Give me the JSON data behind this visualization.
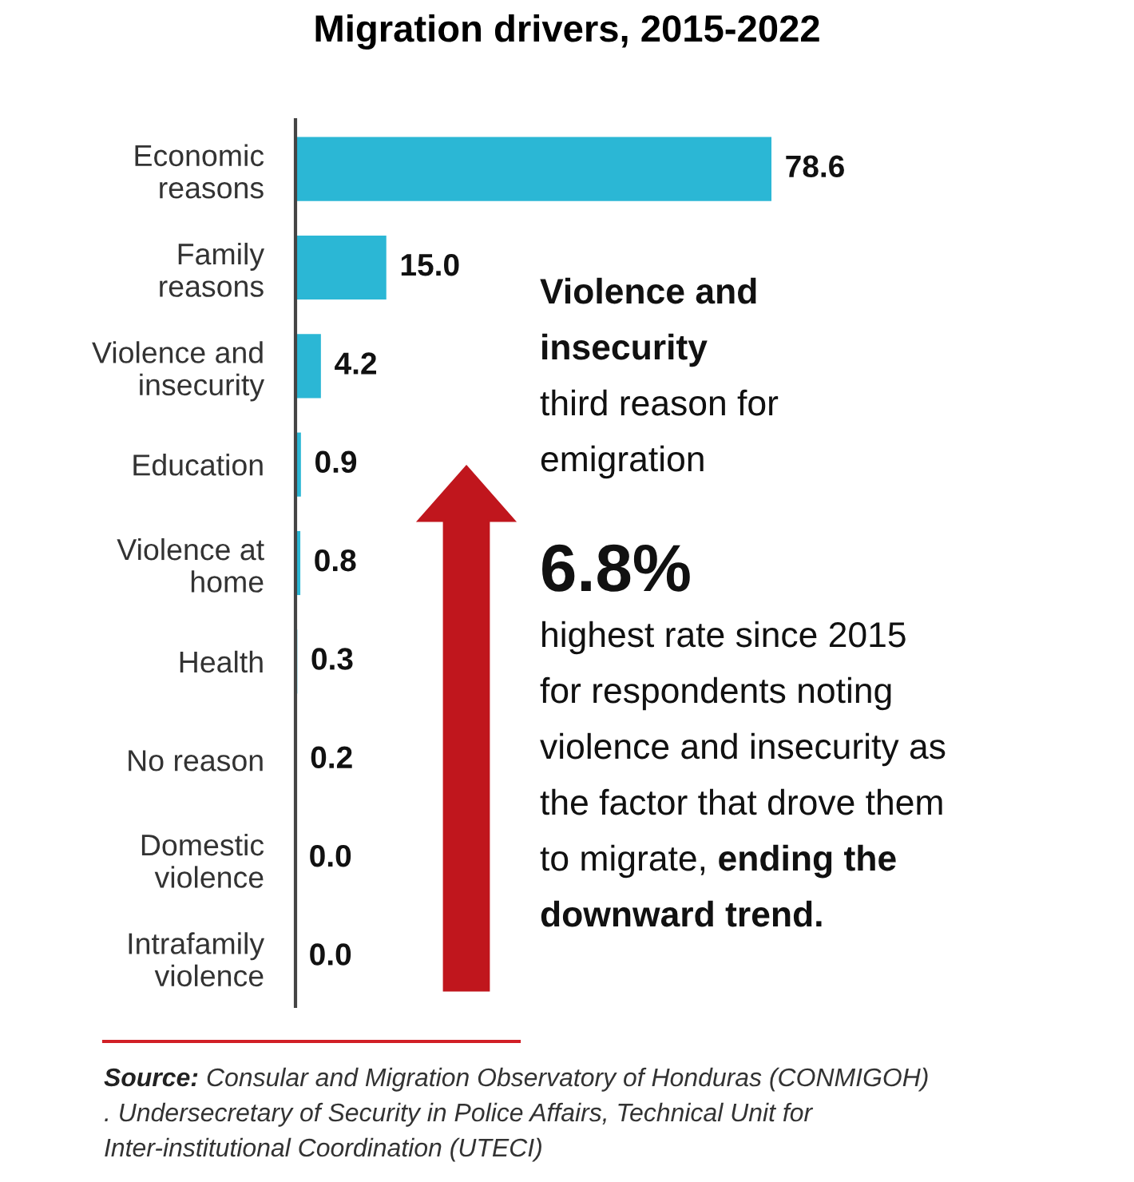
{
  "chart_data": {
    "type": "bar",
    "orientation": "horizontal",
    "title": "Migration drivers, 2015-2022",
    "categories": [
      "Economic\nreasons",
      "Family\nreasons",
      "Violence and\ninsecurity",
      "Education",
      "Violence at\nhome",
      "Health",
      "No reason",
      "Domestic\nviolence",
      "Intrafamily\nviolence"
    ],
    "values": [
      78.6,
      15.0,
      4.2,
      0.9,
      0.8,
      0.3,
      0.2,
      0.0,
      0.0
    ],
    "value_labels": [
      "78.6",
      "15.0",
      "4.2",
      "0.9",
      "0.8",
      "0.3",
      "0.2",
      "0.0",
      "0.0"
    ],
    "color": "#2bb7d5",
    "grid": false,
    "legend": false,
    "annotations": [
      "Violence and\ninsecurity",
      "\nthird reason for\nemigration",
      "6.8%",
      "highest rate since 2015\nfor respondents noting\nviolence and insecurity as\nthe factor that drove them\nto migrate, ",
      "ending the\ndownward trend.",
      "Source: ",
      "Consular and Migration Observatory of Honduras (CONMIGOH)\n. Undersecretary of Security in Police Affairs, Technical Unit for\nInter-institutional Coordination (UTECI)"
    ]
  }
}
